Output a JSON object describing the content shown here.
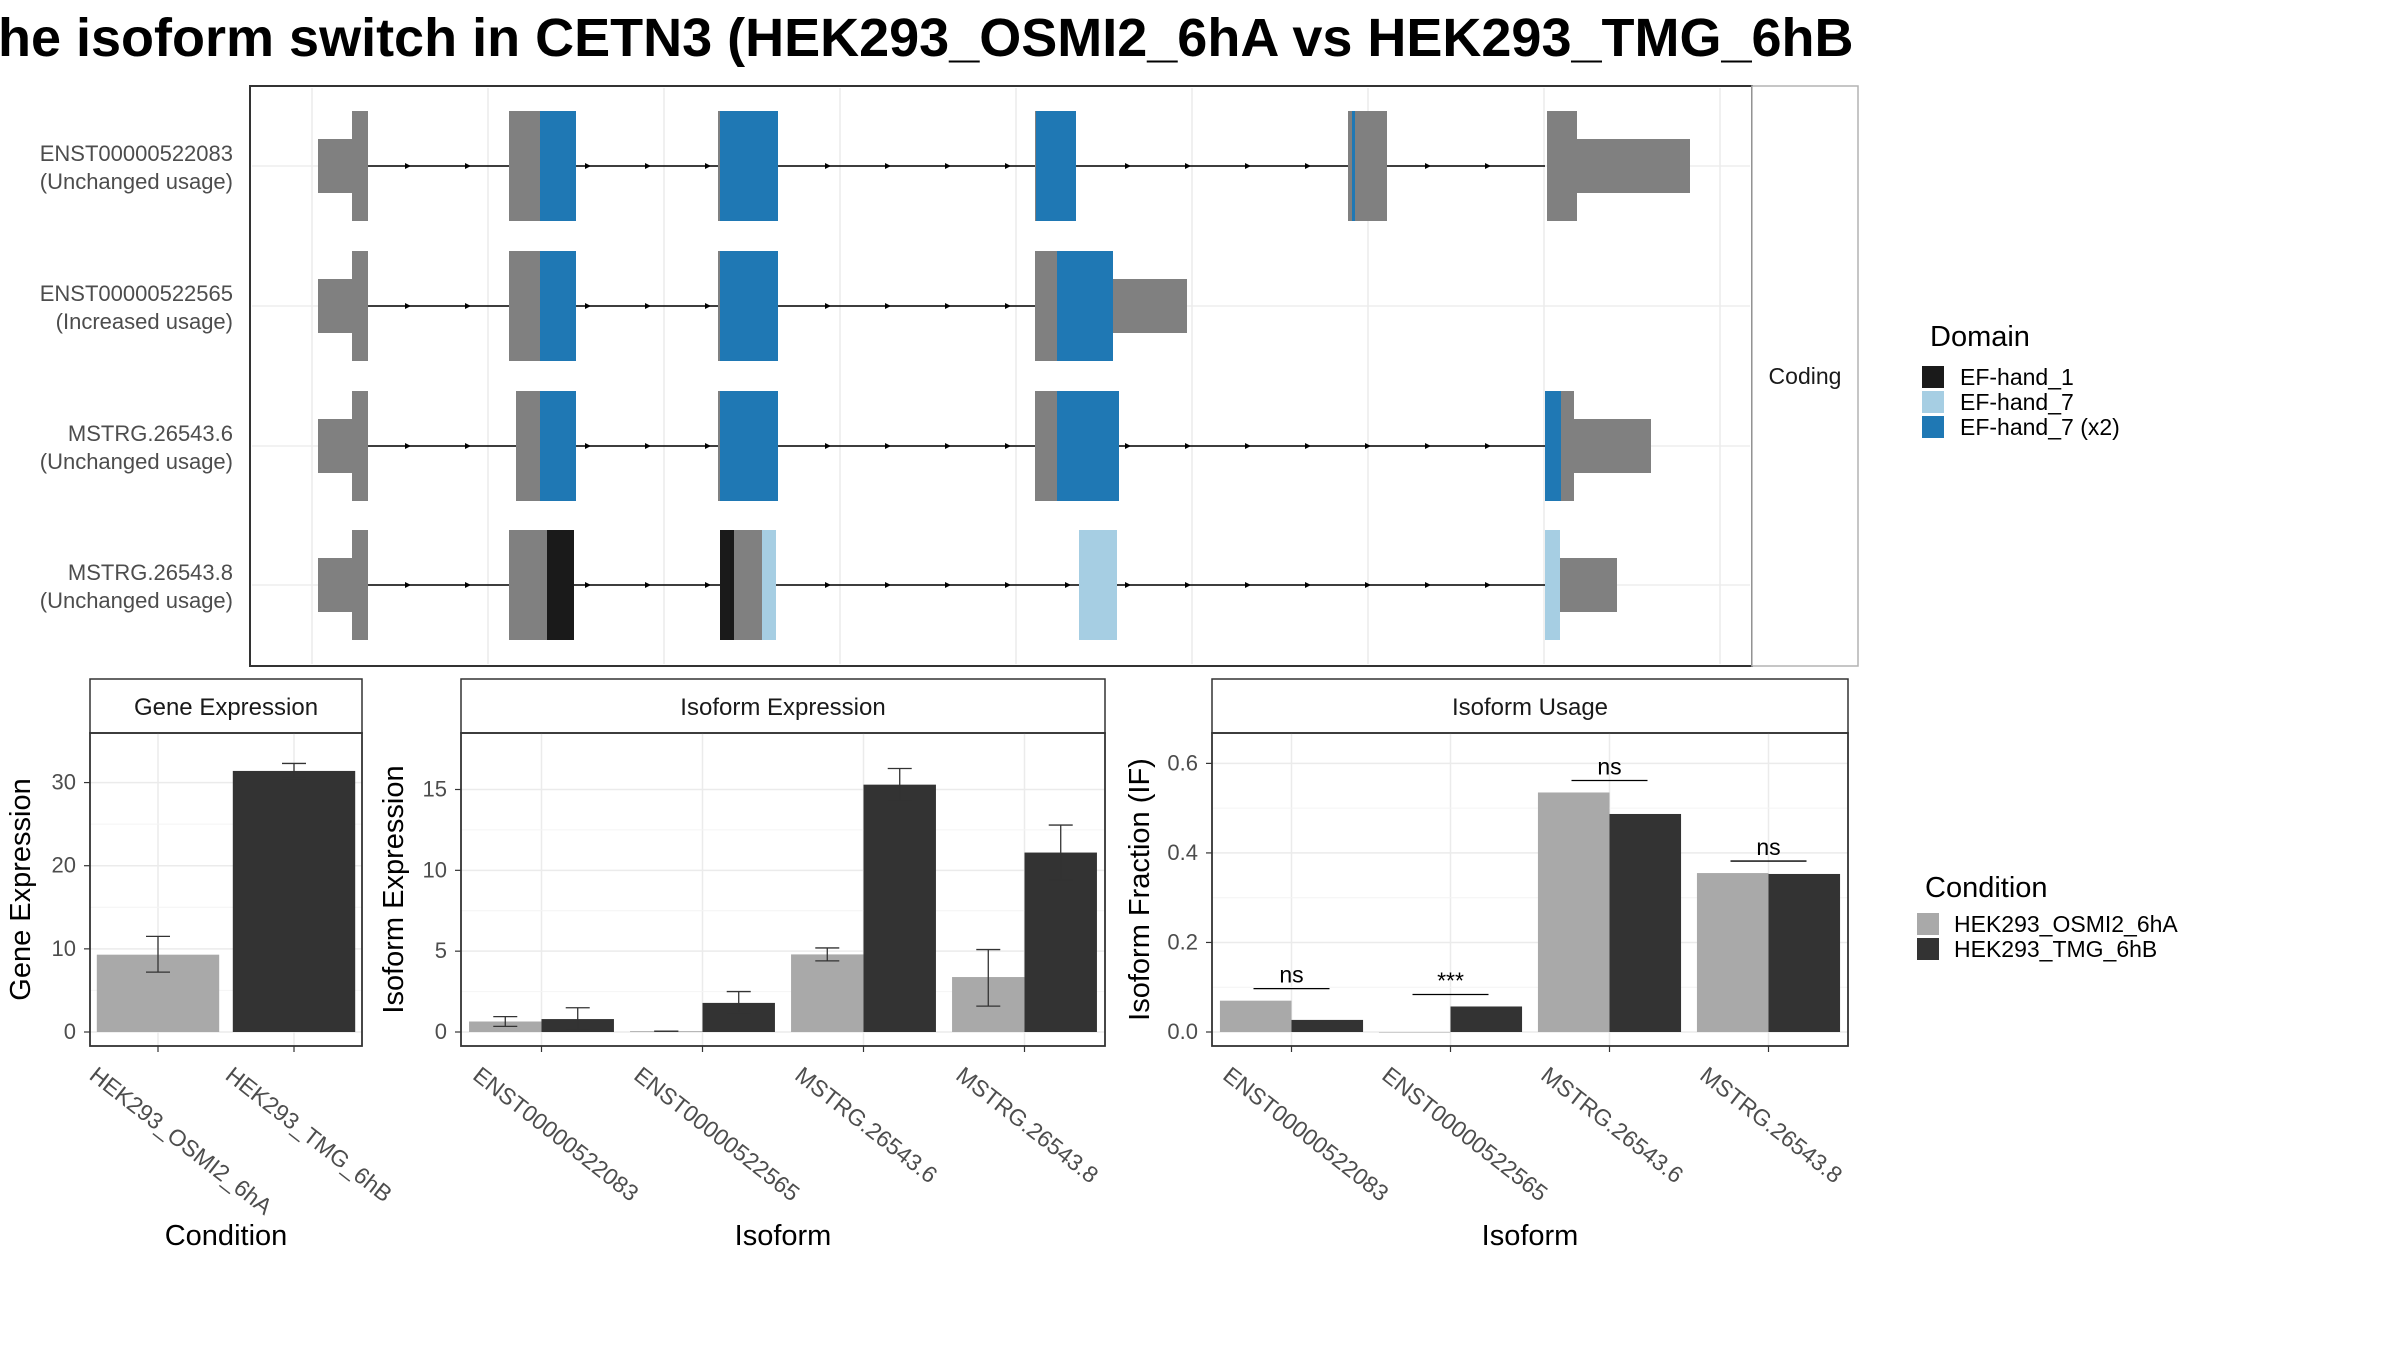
{
  "title": "he isoform switch in CETN3 (HEK293_OSMI2_6hA vs HEK293_TMG_6hB",
  "colors": {
    "exon": "#808080",
    "EF-hand_1": "#1a1a1a",
    "EF-hand_7": "#a6cee3",
    "EF-hand_7 (x2)": "#1f78b4",
    "cond_A": "#a9a9a9",
    "cond_B": "#333333",
    "grid": "#ebebeb"
  },
  "structure": {
    "facet_label": "Coding",
    "transcripts": [
      {
        "id": "ENST00000522083",
        "usage": "(Unchanged usage)"
      },
      {
        "id": "ENST00000522565",
        "usage": "(Increased usage)"
      },
      {
        "id": "MSTRG.26543.6",
        "usage": "(Unchanged usage)"
      },
      {
        "id": "MSTRG.26543.8",
        "usage": "(Unchanged usage)"
      }
    ],
    "domain_legend": {
      "title": "Domain",
      "items": [
        "EF-hand_1",
        "EF-hand_7",
        "EF-hand_7 (x2)"
      ]
    }
  },
  "condition_legend": {
    "title": "Condition",
    "items": [
      "HEK293_OSMI2_6hA",
      "HEK293_TMG_6hB"
    ]
  },
  "chart_data": [
    {
      "type": "bar",
      "title": "Gene Expression",
      "xlabel": "Condition",
      "ylabel": "Gene Expression",
      "categories": [
        "HEK293_OSMI2_6hA",
        "HEK293_TMG_6hB"
      ],
      "values": [
        9.3,
        31.4
      ],
      "errors": [
        [
          7.2,
          11.5
        ],
        [
          30.5,
          32.3
        ]
      ],
      "ylim": [
        0,
        35
      ],
      "yticks": [
        0,
        10,
        20,
        30
      ]
    },
    {
      "type": "bar",
      "title": "Isoform Expression",
      "xlabel": "Isoform",
      "ylabel": "Isoform Expression",
      "categories": [
        "ENST00000522083",
        "ENST00000522565",
        "MSTRG.26543.6",
        "MSTRG.26543.8"
      ],
      "series": [
        {
          "name": "HEK293_OSMI2_6hA",
          "values": [
            0.65,
            0.05,
            4.8,
            3.4
          ],
          "errors": [
            [
              0.35,
              0.95
            ],
            [
              0.05,
              0.05
            ],
            [
              4.4,
              5.2
            ],
            [
              1.6,
              5.1
            ]
          ]
        },
        {
          "name": "HEK293_TMG_6hB",
          "values": [
            0.8,
            1.8,
            15.3,
            11.1
          ],
          "errors": [
            [
              0.1,
              1.5
            ],
            [
              1.2,
              2.5
            ],
            [
              14.3,
              16.3
            ],
            [
              9.4,
              12.8
            ]
          ]
        }
      ],
      "ylim": [
        0,
        18
      ],
      "yticks": [
        0,
        5,
        10,
        15
      ]
    },
    {
      "type": "bar",
      "title": "Isoform Usage",
      "xlabel": "Isoform",
      "ylabel": "Isoform Fraction (IF)",
      "categories": [
        "ENST00000522083",
        "ENST00000522565",
        "MSTRG.26543.6",
        "MSTRG.26543.8"
      ],
      "series": [
        {
          "name": "HEK293_OSMI2_6hA",
          "values": [
            0.07,
            0.0,
            0.535,
            0.355
          ]
        },
        {
          "name": "HEK293_TMG_6hB",
          "values": [
            0.027,
            0.057,
            0.487,
            0.353
          ]
        }
      ],
      "significance": [
        "ns",
        "***",
        "ns",
        "ns"
      ],
      "ylim": [
        0,
        0.65
      ],
      "yticks": [
        0.0,
        0.2,
        0.4,
        0.6
      ],
      "ytick_labels": [
        "0.0",
        "0.2",
        "0.4",
        "0.6"
      ]
    }
  ]
}
